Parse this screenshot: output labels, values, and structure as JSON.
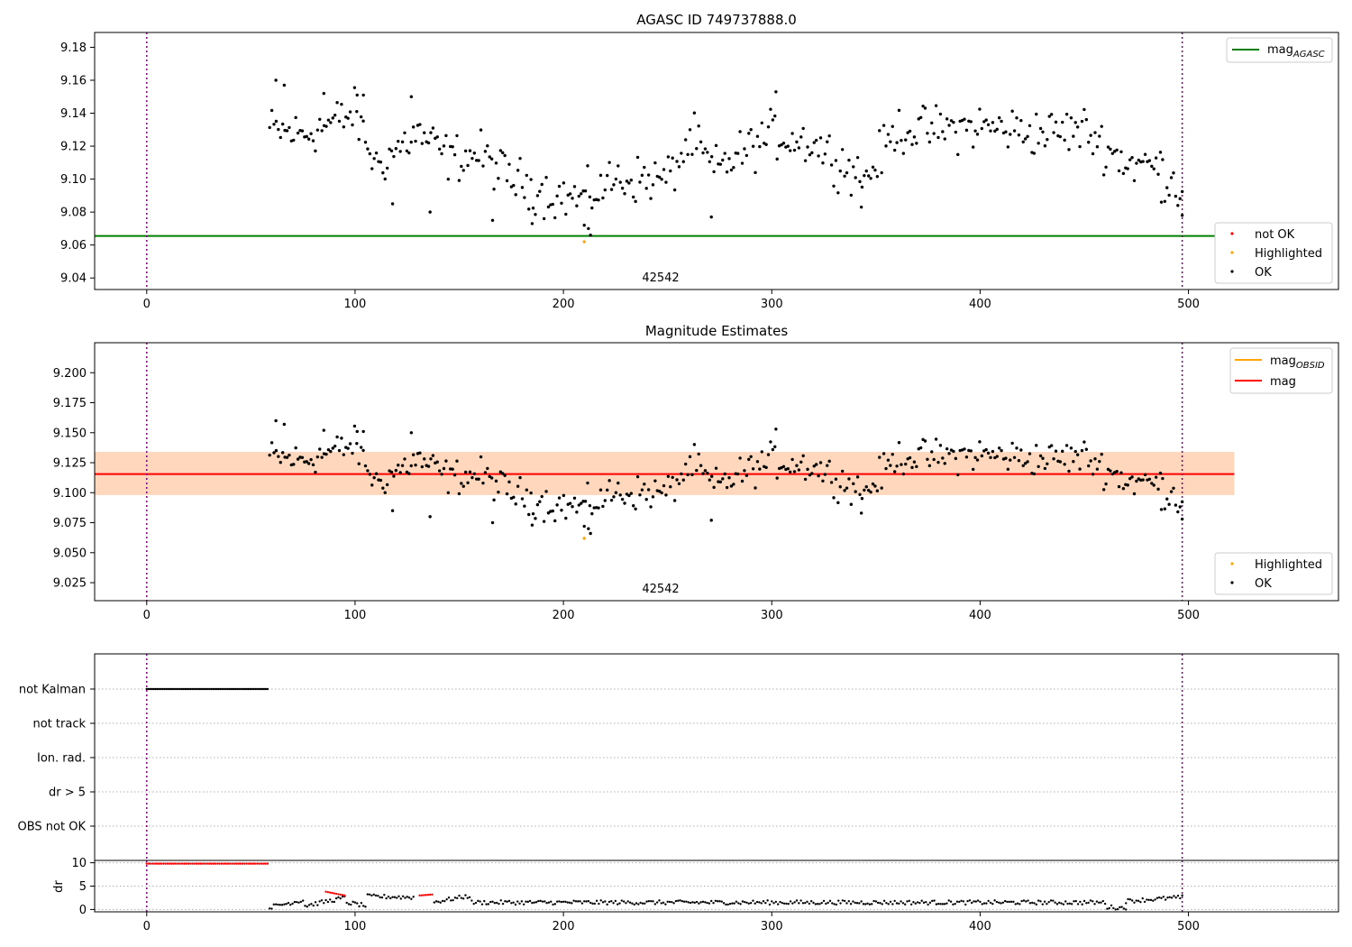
{
  "chart_data": [
    {
      "type": "scatter",
      "title": "AGASC ID 749737888.0",
      "xlim": [
        -25,
        572
      ],
      "ylim": [
        9.033,
        9.189
      ],
      "xticks": [
        "0",
        "100",
        "200",
        "300",
        "400",
        "500"
      ],
      "yticks": [
        "9.04",
        "9.06",
        "9.08",
        "9.10",
        "9.12",
        "9.14",
        "9.16",
        "9.18"
      ],
      "vlines": [
        0,
        497
      ],
      "obsid_label": "42542",
      "obsid_label_x": 248,
      "hline": {
        "name": "mag_AGASC",
        "value": 9.0655,
        "color": "#008000"
      },
      "legend_lines": [
        {
          "label": "mag",
          "sub": "AGASC",
          "color": "#008000"
        }
      ],
      "legend_points": [
        {
          "label": "not OK",
          "color": "#ff0000"
        },
        {
          "label": "Highlighted",
          "color": "#ffa500"
        },
        {
          "label": "OK",
          "color": "#000000"
        }
      ],
      "series": [
        {
          "name": "OK",
          "color": "#000000",
          "x_start": 59,
          "x_end": 497,
          "n": 420,
          "profile": [
            [
              59,
              9.13
            ],
            [
              75,
              9.127
            ],
            [
              100,
              9.14
            ],
            [
              110,
              9.108
            ],
            [
              130,
              9.128
            ],
            [
              145,
              9.113
            ],
            [
              160,
              9.115
            ],
            [
              175,
              9.1
            ],
            [
              195,
              9.09
            ],
            [
              210,
              9.088
            ],
            [
              225,
              9.1
            ],
            [
              250,
              9.1
            ],
            [
              262,
              9.125
            ],
            [
              272,
              9.105
            ],
            [
              300,
              9.127
            ],
            [
              320,
              9.122
            ],
            [
              345,
              9.1
            ],
            [
              360,
              9.13
            ],
            [
              380,
              9.13
            ],
            [
              400,
              9.132
            ],
            [
              430,
              9.128
            ],
            [
              450,
              9.13
            ],
            [
              470,
              9.11
            ],
            [
              485,
              9.108
            ],
            [
              497,
              9.093
            ]
          ],
          "outliers": [
            [
              271,
              9.077
            ],
            [
              210,
              9.072
            ],
            [
              212,
              9.07
            ],
            [
              213,
              9.066
            ],
            [
              302,
              9.153
            ],
            [
              62,
              9.16
            ],
            [
              66,
              9.157
            ],
            [
              85,
              9.152
            ],
            [
              101,
              9.151
            ],
            [
              104,
              9.151
            ],
            [
              127,
              9.15
            ],
            [
              185,
              9.073
            ],
            [
              136,
              9.08
            ],
            [
              343,
              9.083
            ],
            [
              487,
              9.086
            ],
            [
              497,
              9.078
            ],
            [
              118,
              9.085
            ],
            [
              166,
              9.075
            ]
          ]
        },
        {
          "name": "Highlighted",
          "color": "#ffa500",
          "points": [
            [
              210,
              9.062
            ]
          ]
        }
      ]
    },
    {
      "type": "scatter",
      "title": "Magnitude Estimates",
      "xlim": [
        -25,
        572
      ],
      "ylim": [
        9.01,
        9.225
      ],
      "xticks": [
        "0",
        "100",
        "200",
        "300",
        "400",
        "500"
      ],
      "yticks": [
        "9.025",
        "9.050",
        "9.075",
        "9.100",
        "9.125",
        "9.150",
        "9.175",
        "9.200"
      ],
      "vlines": [
        0,
        497
      ],
      "obsid_label": "42542",
      "obsid_label_x": 248,
      "mag_line": {
        "name": "mag",
        "value": 9.1155,
        "color": "#ff0000",
        "x_range": [
          -25,
          522
        ]
      },
      "mag_band": {
        "low": 9.098,
        "high": 9.134,
        "x_range": [
          -25,
          522
        ],
        "color": "#ffb6c1"
      },
      "obsid_band": {
        "low": 9.098,
        "high": 9.134,
        "x_range": [
          -25,
          522
        ],
        "color": "#ffa500"
      },
      "obsid_line": {
        "name": "mag_OBSID",
        "value": 9.1155,
        "color": "#ffa500"
      },
      "legend_lines": [
        {
          "label": "mag",
          "sub": "OBSID",
          "color": "#ffa500"
        },
        {
          "label": "mag",
          "sub": "",
          "color": "#ff0000"
        }
      ],
      "legend_points": [
        {
          "label": "Highlighted",
          "color": "#ffa500"
        },
        {
          "label": "OK",
          "color": "#000000"
        }
      ]
    },
    {
      "type": "scatter",
      "xlim": [
        -25,
        572
      ],
      "categories": [
        "not Kalman",
        "not track",
        "Ion. rad.",
        "dr > 5",
        "OBS not OK"
      ],
      "vlines": [
        0,
        497
      ],
      "flag_points": {
        "category": "not Kalman",
        "x_start": 0,
        "x_end": 58,
        "n": 70,
        "color": "#000000"
      }
    },
    {
      "type": "scatter",
      "ylabel": "dr",
      "xlim": [
        -25,
        572
      ],
      "ylim": [
        -0.5,
        10.5
      ],
      "yticks": [
        "0",
        "5",
        "10"
      ],
      "xticks": [
        "0",
        "100",
        "200",
        "300",
        "400",
        "500"
      ],
      "vlines": [
        0,
        497
      ],
      "red_segments": [
        [
          0,
          58,
          9.8,
          9.8
        ],
        [
          86,
          95,
          3.8,
          3.0
        ],
        [
          131,
          137,
          3.0,
          3.2
        ]
      ],
      "black_segments": [
        [
          59,
          75,
          0.5,
          2.0
        ],
        [
          76,
          95,
          0.8,
          2.5
        ],
        [
          96,
          105,
          1.5,
          0.8
        ],
        [
          106,
          128,
          2.8,
          2.6
        ],
        [
          138,
          155,
          1.6,
          2.9
        ],
        [
          156,
          460,
          1.5,
          1.5
        ],
        [
          461,
          470,
          0.5,
          0.3
        ],
        [
          470,
          497,
          1.8,
          2.6
        ]
      ]
    }
  ]
}
